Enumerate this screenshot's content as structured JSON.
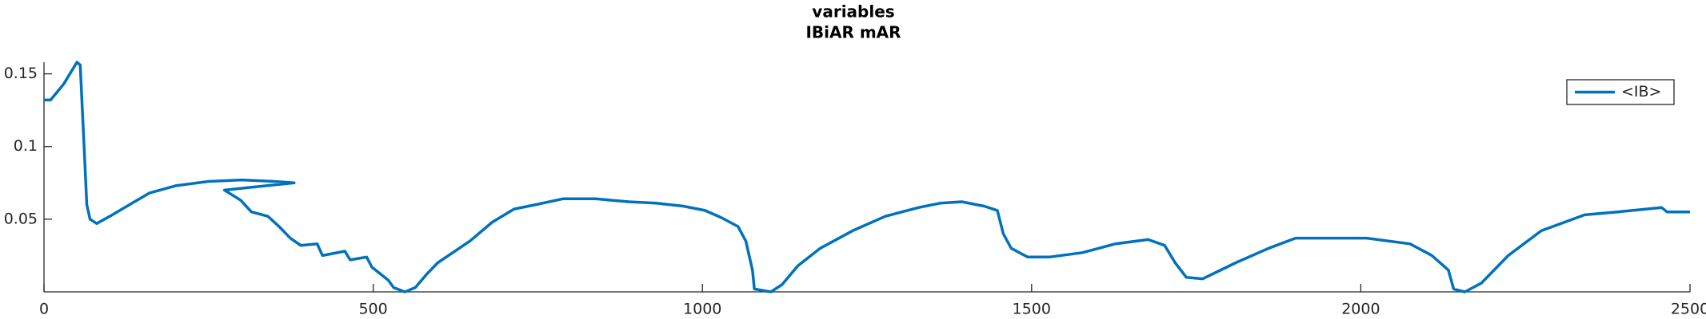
{
  "chart_data": {
    "type": "line",
    "title": "variables",
    "subtitle": "IBiAR mAR",
    "x": [
      0,
      10,
      30,
      50,
      55,
      62,
      65,
      70,
      80,
      100,
      130,
      160,
      200,
      250,
      300,
      350,
      380,
      274,
      299,
      315,
      340,
      357,
      374,
      390,
      415,
      423,
      457,
      465,
      490,
      498,
      523,
      531,
      548,
      564,
      581,
      598,
      647,
      681,
      714,
      747,
      788,
      838,
      888,
      930,
      971,
      1004,
      1029,
      1054,
      1066,
      1076,
      1079,
      1104,
      1121,
      1145,
      1179,
      1228,
      1278,
      1328,
      1361,
      1394,
      1428,
      1448,
      1457,
      1469,
      1494,
      1527,
      1577,
      1627,
      1677,
      1702,
      1718,
      1735,
      1760,
      1810,
      1860,
      1901,
      1951,
      2009,
      2075,
      2108,
      2133,
      2141,
      2158,
      2183,
      2224,
      2274,
      2340,
      2390,
      2457,
      2465,
      2500
    ],
    "series": [
      {
        "name": "<IB>",
        "color": "#0072bd",
        "values": [
          0.132,
          0.132,
          0.143,
          0.158,
          0.156,
          0.09,
          0.06,
          0.05,
          0.047,
          0.052,
          0.06,
          0.068,
          0.073,
          0.076,
          0.077,
          0.076,
          0.075,
          0.07,
          0.063,
          0.055,
          0.052,
          0.045,
          0.037,
          0.032,
          0.033,
          0.025,
          0.028,
          0.022,
          0.024,
          0.017,
          0.008,
          0.003,
          0,
          0.003,
          0.012,
          0.02,
          0.035,
          0.048,
          0.057,
          0.06,
          0.064,
          0.064,
          0.062,
          0.061,
          0.059,
          0.056,
          0.051,
          0.045,
          0.035,
          0.015,
          0.002,
          0,
          0.005,
          0.018,
          0.03,
          0.042,
          0.052,
          0.058,
          0.061,
          0.062,
          0.059,
          0.056,
          0.04,
          0.03,
          0.024,
          0.024,
          0.027,
          0.033,
          0.036,
          0.032,
          0.02,
          0.01,
          0.009,
          0.02,
          0.03,
          0.037,
          0.037,
          0.037,
          0.033,
          0.025,
          0.015,
          0.002,
          0,
          0.006,
          0.025,
          0.042,
          0.053,
          0.055,
          0.058,
          0.055,
          0.055
        ]
      }
    ],
    "xlim": [
      0,
      2500
    ],
    "xticks": [
      0,
      500,
      1000,
      1500,
      2000,
      2500
    ],
    "ylim": [
      0,
      0.158
    ],
    "yticks": [
      0.05,
      0.1,
      0.15
    ],
    "legend": "upper-right"
  }
}
